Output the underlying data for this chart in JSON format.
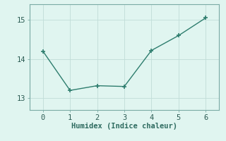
{
  "x": [
    0,
    1,
    2,
    3,
    4,
    5,
    6
  ],
  "y": [
    14.2,
    13.2,
    13.32,
    13.3,
    14.22,
    14.6,
    15.05
  ],
  "line_color": "#2e7d6e",
  "marker_color": "#2e7d6e",
  "bg_color": "#e0f5f0",
  "grid_color": "#c0ddd8",
  "spine_color": "#7aaba5",
  "xlabel": "Humidex (Indice chaleur)",
  "xlim": [
    -0.5,
    6.5
  ],
  "ylim": [
    12.7,
    15.4
  ],
  "yticks": [
    13,
    14,
    15
  ],
  "xticks": [
    0,
    1,
    2,
    3,
    4,
    5,
    6
  ],
  "axis_fontsize": 7.5,
  "tick_fontsize": 7.5
}
